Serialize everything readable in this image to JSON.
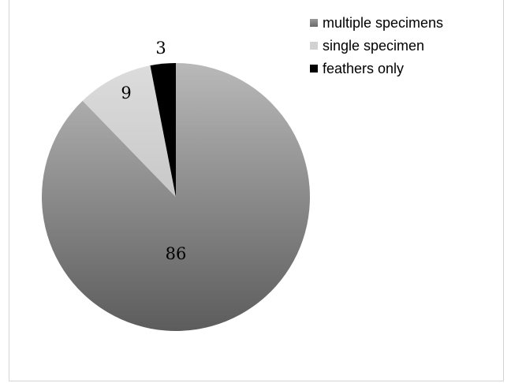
{
  "chart_data": {
    "type": "pie",
    "start_angle": 0,
    "direction": "clockwise",
    "series": [
      {
        "values": [
          86,
          9,
          3
        ],
        "labels": [
          "86",
          "9",
          "3"
        ]
      }
    ],
    "categories": [
      "multiple specimens",
      "single specimen",
      "feathers only"
    ],
    "colors": [
      "#8c8c8c",
      "#d0d0d0",
      "#000000"
    ],
    "legend": {
      "placement": "top-right",
      "entries": [
        "multiple specimens",
        "single specimen",
        "feathers only"
      ]
    }
  }
}
